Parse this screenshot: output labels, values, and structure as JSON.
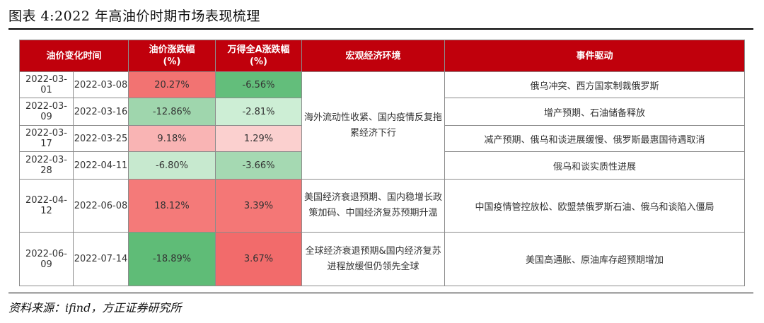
{
  "title": "图表 4:2022 年高油价时期市场表现梳理",
  "source": "资料来源：ifind，方正证券研究所",
  "table": {
    "headers": {
      "period": "油价变化时间",
      "oil_line1": "油价涨跌幅",
      "oil_line2": "(%)",
      "a_line1": "万得全A涨跌幅",
      "a_line2": "(%)",
      "macro": "宏观经济环境",
      "event": "事件驱动"
    },
    "rows": [
      {
        "start": "2022-03-01",
        "end": "2022-03-08",
        "oil": "20.27%",
        "oil_color": "#f27372",
        "a": "-6.56%",
        "a_color": "#63be7b",
        "event": "俄乌冲突、西方国家制裁俄罗斯"
      },
      {
        "start": "2022-03-09",
        "end": "2022-03-16",
        "oil": "-12.86%",
        "oil_color": "#9fd6ad",
        "a": "-2.81%",
        "a_color": "#cdeed5",
        "event": "增产预期、石油储备释放"
      },
      {
        "start": "2022-03-17",
        "end": "2022-03-25",
        "oil": "9.18%",
        "oil_color": "#f9b4b4",
        "a": "1.29%",
        "a_color": "#fbd0cf",
        "event": "减产预期、俄乌和谈进展缓慢、俄罗斯最惠国待遇取消"
      },
      {
        "start": "2022-03-28",
        "end": "2022-04-11",
        "oil": "-6.80%",
        "oil_color": "#c7e9cf",
        "a": "-3.66%",
        "a_color": "#a5d9b2",
        "event": "俄乌和谈实质性进展"
      },
      {
        "start": "2022-04-12",
        "end": "2022-06-08",
        "oil": "18.12%",
        "oil_color": "#f47a79",
        "a": "3.39%",
        "a_color": "#f47776",
        "event": "中国疫情管控放松、欧盟禁俄罗斯石油、俄乌和谈陷入僵局"
      },
      {
        "start": "2022-06-09",
        "end": "2022-07-14",
        "oil": "-18.89%",
        "oil_color": "#5fbc77",
        "a": "3.67%",
        "a_color": "#f26b6b",
        "event": "美国高通胀、原油库存超预期增加"
      }
    ],
    "macro_groups": [
      "海外流动性收紧、国内疫情反复拖累经济下行",
      "美国经济衰退预期、国内稳增长政策加码、中国经济复苏预期升温",
      "全球经济衰退预期&国内经济复苏进程放缓但仍领先全球"
    ]
  }
}
